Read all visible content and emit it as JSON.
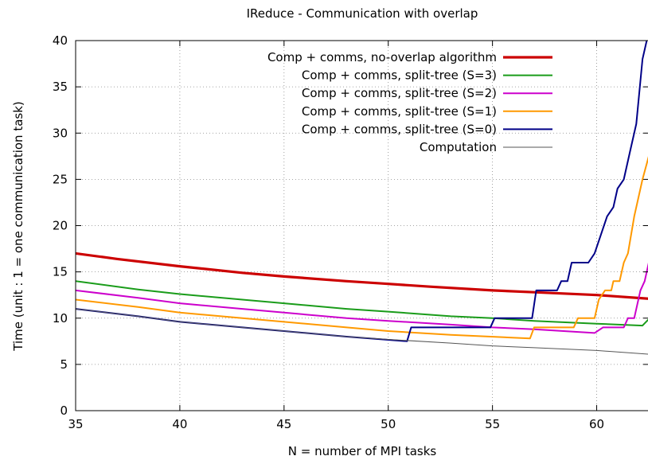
{
  "chart_data": {
    "type": "line",
    "title": "IReduce - Communication with overlap",
    "xlabel": "N = number of MPI tasks",
    "ylabel": "Time (unit : 1 = one communication task)",
    "xlim": [
      35,
      62.5
    ],
    "ylim": [
      0,
      40
    ],
    "xticks": [
      35,
      40,
      45,
      50,
      55,
      60
    ],
    "yticks": [
      0,
      5,
      10,
      15,
      20,
      25,
      30,
      35,
      40
    ],
    "grid": true,
    "legend_position": "top-right",
    "series": [
      {
        "name": "Comp + comms, no-overlap algorithm",
        "color": "#cc0000",
        "points": [
          [
            35,
            17.0
          ],
          [
            37,
            16.4
          ],
          [
            40,
            15.6
          ],
          [
            43,
            14.9
          ],
          [
            45,
            14.5
          ],
          [
            48,
            14.0
          ],
          [
            50,
            13.7
          ],
          [
            52,
            13.4
          ],
          [
            55,
            13.0
          ],
          [
            57,
            12.8
          ],
          [
            60,
            12.5
          ],
          [
            62.5,
            12.1
          ]
        ]
      },
      {
        "name": "Comp + comms, split-tree (S=3)",
        "color": "#1a9c1a",
        "points": [
          [
            35,
            14.0
          ],
          [
            38,
            13.1
          ],
          [
            40,
            12.6
          ],
          [
            43,
            12.0
          ],
          [
            45,
            11.6
          ],
          [
            48,
            11.0
          ],
          [
            50,
            10.7
          ],
          [
            53,
            10.2
          ],
          [
            55,
            10.0
          ],
          [
            57,
            9.7
          ],
          [
            60,
            9.4
          ],
          [
            62.2,
            9.2
          ],
          [
            62.5,
            9.9
          ]
        ]
      },
      {
        "name": "Comp + comms, split-tree (S=2)",
        "color": "#cc00cc",
        "points": [
          [
            35,
            13.0
          ],
          [
            38,
            12.2
          ],
          [
            40,
            11.6
          ],
          [
            43,
            11.0
          ],
          [
            45,
            10.6
          ],
          [
            48,
            10.0
          ],
          [
            50,
            9.7
          ],
          [
            53,
            9.3
          ],
          [
            55,
            9.0
          ],
          [
            57,
            8.8
          ],
          [
            59.9,
            8.4
          ],
          [
            60.3,
            9.0
          ],
          [
            61.3,
            9.0
          ],
          [
            61.5,
            10.0
          ],
          [
            61.8,
            10.0
          ],
          [
            62.1,
            13.0
          ],
          [
            62.3,
            14.0
          ],
          [
            62.5,
            16.0
          ]
        ]
      },
      {
        "name": "Comp + comms, split-tree (S=1)",
        "color": "#ff9900",
        "points": [
          [
            35,
            12.0
          ],
          [
            38,
            11.2
          ],
          [
            40,
            10.6
          ],
          [
            43,
            10.0
          ],
          [
            45,
            9.6
          ],
          [
            48,
            9.0
          ],
          [
            50,
            8.6
          ],
          [
            53,
            8.2
          ],
          [
            56.8,
            7.8
          ],
          [
            57,
            9.0
          ],
          [
            58.9,
            9.0
          ],
          [
            59.1,
            10.0
          ],
          [
            59.9,
            10.0
          ],
          [
            60.1,
            12.0
          ],
          [
            60.4,
            13.0
          ],
          [
            60.7,
            13.0
          ],
          [
            60.8,
            14.0
          ],
          [
            61.1,
            14.0
          ],
          [
            61.3,
            16.0
          ],
          [
            61.5,
            17.0
          ],
          [
            61.8,
            21.0
          ],
          [
            62.2,
            25.0
          ],
          [
            62.5,
            27.5
          ]
        ]
      },
      {
        "name": "Comp + comms, split-tree (S=0)",
        "color": "#000088",
        "points": [
          [
            35,
            11.0
          ],
          [
            38,
            10.2
          ],
          [
            40,
            9.6
          ],
          [
            43,
            9.0
          ],
          [
            45,
            8.6
          ],
          [
            48,
            8.0
          ],
          [
            50.9,
            7.5
          ],
          [
            51.1,
            9.0
          ],
          [
            54.9,
            9.0
          ],
          [
            55.1,
            10.0
          ],
          [
            56.9,
            10.0
          ],
          [
            57.1,
            13.0
          ],
          [
            58.1,
            13.0
          ],
          [
            58.3,
            14.0
          ],
          [
            58.6,
            14.0
          ],
          [
            58.8,
            16.0
          ],
          [
            59.6,
            16.0
          ],
          [
            59.9,
            17.0
          ],
          [
            60.2,
            19.0
          ],
          [
            60.5,
            21.0
          ],
          [
            60.8,
            22.0
          ],
          [
            61.0,
            24.0
          ],
          [
            61.3,
            25.0
          ],
          [
            61.6,
            28.0
          ],
          [
            61.9,
            31.0
          ],
          [
            62.2,
            38.0
          ],
          [
            62.4,
            40.0
          ]
        ]
      },
      {
        "name": "Computation",
        "color": "#555555",
        "points": [
          [
            35,
            11.0
          ],
          [
            38,
            10.2
          ],
          [
            40,
            9.6
          ],
          [
            43,
            9.0
          ],
          [
            45,
            8.6
          ],
          [
            48,
            8.0
          ],
          [
            50,
            7.7
          ],
          [
            53,
            7.3
          ],
          [
            55,
            7.0
          ],
          [
            57,
            6.8
          ],
          [
            60,
            6.5
          ],
          [
            62.5,
            6.1
          ]
        ]
      }
    ]
  }
}
